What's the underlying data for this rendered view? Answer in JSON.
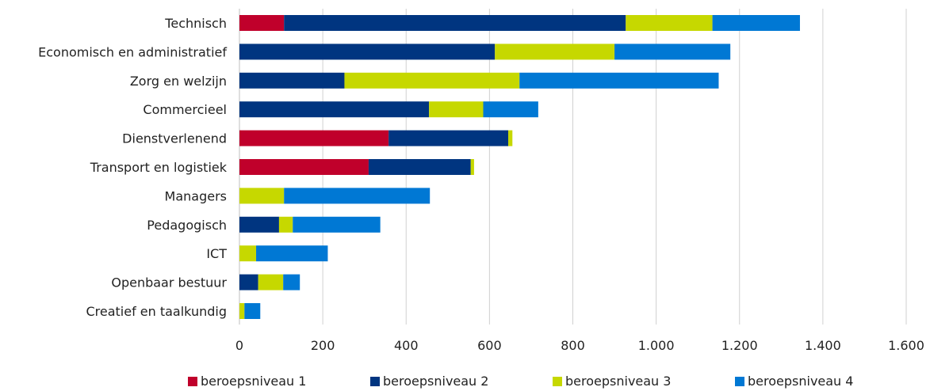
{
  "chart_data": {
    "type": "bar",
    "orientation": "horizontal",
    "stacked": true,
    "categories": [
      "Technisch",
      "Economisch en administratief",
      "Zorg en welzijn",
      "Commercieel",
      "Dienstverlenend",
      "Transport en logistiek",
      "Managers",
      "Pedagogisch",
      "ICT",
      "Openbaar bestuur",
      "Creatief en taalkundig"
    ],
    "series": [
      {
        "name": "beroepsniveau 1",
        "color": "#c0002b",
        "values": [
          107,
          0,
          0,
          0,
          358,
          310,
          0,
          0,
          0,
          0,
          0
        ]
      },
      {
        "name": "beroepsniveau 2",
        "color": "#003580",
        "values": [
          820,
          613,
          252,
          455,
          287,
          245,
          0,
          95,
          0,
          45,
          0
        ]
      },
      {
        "name": "beroepsniveau 3",
        "color": "#c6d800",
        "values": [
          208,
          287,
          420,
          130,
          10,
          8,
          107,
          33,
          40,
          60,
          12
        ]
      },
      {
        "name": "beroepsniveau 4",
        "color": "#0078d4",
        "values": [
          210,
          278,
          478,
          132,
          0,
          0,
          350,
          210,
          172,
          40,
          38
        ]
      }
    ],
    "x_ticks": [
      "0",
      "200",
      "400",
      "600",
      "800",
      "1.000",
      "1.200",
      "1.400",
      "1.600"
    ],
    "xlim": [
      0,
      1600
    ],
    "grid": true,
    "legend_position": "bottom"
  }
}
